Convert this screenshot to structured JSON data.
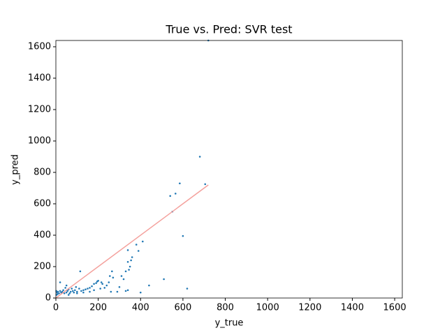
{
  "chart_data": {
    "type": "scatter",
    "title": "True vs. Pred: SVR test",
    "x_label": "y_true",
    "y_label": "y_pred",
    "xlim": [
      0,
      1636
    ],
    "ylim": [
      0,
      1640
    ],
    "xticks": [
      0,
      200,
      400,
      600,
      800,
      1000,
      1200,
      1400,
      1600
    ],
    "yticks": [
      0,
      200,
      400,
      600,
      800,
      1000,
      1200,
      1400,
      1600
    ],
    "series": [
      {
        "kind": "scatter",
        "color": "#1f77b4",
        "x": [
          680,
          705,
          585,
          565,
          540,
          550,
          600,
          620,
          510,
          440,
          400,
          410,
          390,
          380,
          340,
          355,
          360,
          350,
          345,
          340,
          330,
          320,
          310,
          300,
          290,
          340,
          330,
          265,
          270,
          250,
          255,
          240,
          230,
          215,
          210,
          200,
          190,
          180,
          170,
          160,
          150,
          140,
          130,
          120,
          115,
          110,
          100,
          95,
          90,
          85,
          80,
          75,
          70,
          65,
          60,
          55,
          50,
          45,
          40,
          35,
          30,
          25,
          20,
          20,
          15,
          10,
          8,
          5,
          3,
          2,
          50,
          60,
          100,
          130,
          160,
          180,
          195,
          220,
          260,
          720
        ],
        "values": [
          900,
          725,
          730,
          665,
          650,
          550,
          395,
          60,
          120,
          80,
          35,
          360,
          300,
          340,
          305,
          240,
          260,
          200,
          180,
          230,
          170,
          120,
          140,
          70,
          40,
          50,
          45,
          170,
          130,
          100,
          140,
          80,
          65,
          100,
          60,
          110,
          95,
          90,
          75,
          65,
          60,
          55,
          50,
          45,
          170,
          60,
          40,
          70,
          50,
          35,
          45,
          60,
          40,
          30,
          55,
          45,
          35,
          65,
          30,
          50,
          40,
          35,
          100,
          45,
          30,
          40,
          25,
          35,
          20,
          45,
          80,
          20,
          30,
          35,
          40,
          50,
          105,
          90,
          40,
          1640
        ]
      },
      {
        "kind": "line",
        "color": "#f4a09c",
        "x": [
          0,
          720
        ],
        "values": [
          0,
          720
        ]
      }
    ]
  }
}
